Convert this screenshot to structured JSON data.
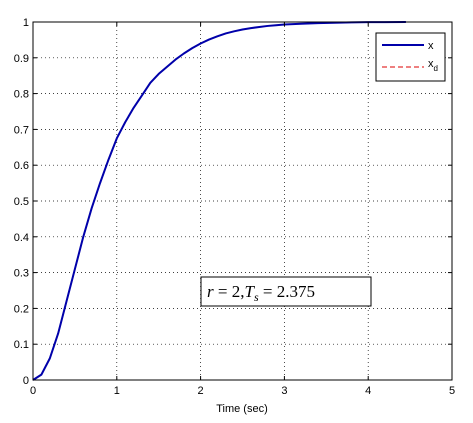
{
  "chart_data": {
    "type": "line",
    "title": "",
    "xlabel": "Time (sec)",
    "ylabel": "",
    "xlim": [
      0,
      5
    ],
    "ylim": [
      0,
      1
    ],
    "xticks": [
      "0",
      "1",
      "2",
      "3",
      "4",
      "5"
    ],
    "yticks": [
      "0",
      "0.1",
      "0.2",
      "0.3",
      "0.4",
      "0.5",
      "0.6",
      "0.7",
      "0.8",
      "0.9",
      "1"
    ],
    "grid": true,
    "legend_position": "top-right",
    "annotation": {
      "lhs1": "r",
      "eq1": " = ",
      "val1": "2",
      "sep": ",",
      "lhs2": "T",
      "sub2": "s",
      "eq2": " = ",
      "val2": "2.375"
    },
    "series": [
      {
        "name": "x",
        "color": "#0000aa",
        "style": "solid",
        "x": [
          0,
          0.1,
          0.2,
          0.3,
          0.4,
          0.5,
          0.6,
          0.7,
          0.8,
          0.9,
          1.0,
          1.1,
          1.2,
          1.3,
          1.4,
          1.5,
          1.6,
          1.7,
          1.8,
          1.9,
          2.0,
          2.1,
          2.2,
          2.3,
          2.4,
          2.5,
          2.6,
          2.7,
          2.8,
          2.9,
          3.0,
          3.2,
          3.4,
          3.6,
          3.8,
          4.0,
          4.2,
          4.45
        ],
        "y": [
          0,
          0.015,
          0.06,
          0.13,
          0.22,
          0.31,
          0.4,
          0.48,
          0.55,
          0.615,
          0.675,
          0.72,
          0.76,
          0.795,
          0.83,
          0.855,
          0.875,
          0.895,
          0.912,
          0.927,
          0.94,
          0.951,
          0.96,
          0.968,
          0.974,
          0.979,
          0.983,
          0.986,
          0.989,
          0.991,
          0.993,
          0.995,
          0.997,
          0.998,
          0.999,
          0.9995,
          0.9998,
          1.0
        ]
      },
      {
        "name": "x",
        "name_sub": "d",
        "color": "#dd0000",
        "style": "dashed",
        "x": [
          0,
          0.1,
          0.2,
          0.3,
          0.4,
          0.5,
          0.6,
          0.7,
          0.8,
          0.9,
          1.0,
          1.1,
          1.2,
          1.3,
          1.4,
          1.5,
          1.6,
          1.7,
          1.8,
          1.9,
          2.0,
          2.1,
          2.2,
          2.3,
          2.4,
          2.5,
          2.6,
          2.7,
          2.8,
          2.9,
          3.0,
          3.2,
          3.4,
          3.6,
          3.8,
          4.0,
          4.2,
          4.45
        ],
        "y": [
          0,
          0.015,
          0.06,
          0.13,
          0.22,
          0.31,
          0.4,
          0.48,
          0.55,
          0.615,
          0.675,
          0.72,
          0.76,
          0.795,
          0.83,
          0.855,
          0.875,
          0.895,
          0.912,
          0.927,
          0.94,
          0.951,
          0.96,
          0.968,
          0.974,
          0.979,
          0.983,
          0.986,
          0.989,
          0.991,
          0.993,
          0.995,
          0.997,
          0.998,
          0.999,
          0.9995,
          0.9998,
          1.0
        ]
      }
    ]
  }
}
